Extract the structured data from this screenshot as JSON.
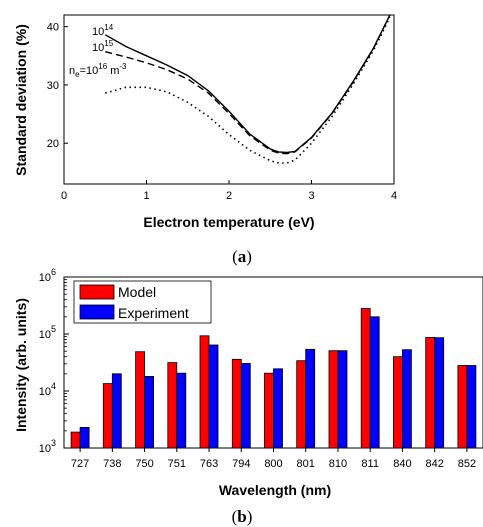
{
  "chart_data": [
    {
      "type": "line",
      "panel_label": "(a)",
      "caption_parts": [
        "(",
        "a",
        ")"
      ],
      "xlabel": "Electron temperature (eV)",
      "ylabel": "Standard deviation (%)",
      "xlim": [
        0,
        4
      ],
      "ylim": [
        13,
        42
      ],
      "xticks": [
        0,
        1,
        2,
        3,
        4
      ],
      "yticks": [
        20,
        30,
        40
      ],
      "series": [
        {
          "name": "10^14",
          "label_base": "10",
          "label_exp": "14",
          "style": "solid",
          "x": [
            0.5,
            0.75,
            1.0,
            1.25,
            1.5,
            1.75,
            2.0,
            2.25,
            2.5,
            2.6,
            2.7,
            2.8,
            3.0,
            3.25,
            3.5,
            3.75,
            3.95
          ],
          "y": [
            38.6,
            36.6,
            35.0,
            33.4,
            31.6,
            29.0,
            25.5,
            21.6,
            19.0,
            18.5,
            18.4,
            18.6,
            21.0,
            25.2,
            30.5,
            36.3,
            42.0
          ]
        },
        {
          "name": "10^15",
          "label_base": "10",
          "label_exp": "15",
          "style": "dashed",
          "x": [
            0.5,
            0.75,
            1.0,
            1.25,
            1.5,
            1.75,
            2.0,
            2.25,
            2.5,
            2.6,
            2.7,
            2.8,
            3.0,
            3.25,
            3.5,
            3.75,
            3.95
          ],
          "y": [
            35.7,
            34.8,
            33.8,
            32.6,
            31.0,
            28.6,
            25.1,
            21.3,
            18.8,
            18.3,
            18.2,
            18.5,
            20.9,
            25.1,
            30.4,
            36.2,
            42.0
          ]
        },
        {
          "name": "ne=10^16 m^-3",
          "label_prefix": "n",
          "label_sub": "e",
          "label_mid": "=10",
          "label_exp": "16",
          "label_unit": " m",
          "label_unit_exp": "-3",
          "style": "dotted",
          "x": [
            0.5,
            0.75,
            1.0,
            1.25,
            1.5,
            1.75,
            2.0,
            2.25,
            2.5,
            2.6,
            2.7,
            2.8,
            3.0,
            3.25,
            3.5,
            3.75,
            3.95
          ],
          "y": [
            28.6,
            29.6,
            29.6,
            28.8,
            27.0,
            24.6,
            21.5,
            18.8,
            17.0,
            16.6,
            16.6,
            17.1,
            20.0,
            24.6,
            30.0,
            35.9,
            41.6
          ]
        }
      ]
    },
    {
      "type": "bar",
      "panel_label": "(b)",
      "caption_parts": [
        "(",
        "b",
        ")"
      ],
      "xlabel": "Wavelength (nm)",
      "ylabel": "Intensity (arb. units)",
      "yscale": "log",
      "ylim": [
        1000,
        1000000
      ],
      "yticks": [
        {
          "value": 1000,
          "base": "10",
          "exp": "3"
        },
        {
          "value": 10000,
          "base": "10",
          "exp": "4"
        },
        {
          "value": 100000,
          "base": "10",
          "exp": "5"
        },
        {
          "value": 1000000,
          "base": "10",
          "exp": "6"
        }
      ],
      "categories": [
        "727",
        "738",
        "750",
        "751",
        "763",
        "794",
        "800",
        "801",
        "810",
        "811",
        "840",
        "842",
        "852"
      ],
      "legend_position": "top-left",
      "series": [
        {
          "name": "Model",
          "color": "#ff0000",
          "values": [
            1900,
            13500,
            49000,
            31500,
            93000,
            36000,
            20500,
            34000,
            51000,
            280000,
            40000,
            87000,
            28000
          ]
        },
        {
          "name": "Experiment",
          "color": "#0000ff",
          "values": [
            2300,
            20000,
            18000,
            20500,
            64000,
            30500,
            24500,
            54000,
            51000,
            200000,
            53000,
            86000,
            28000
          ]
        }
      ]
    }
  ]
}
